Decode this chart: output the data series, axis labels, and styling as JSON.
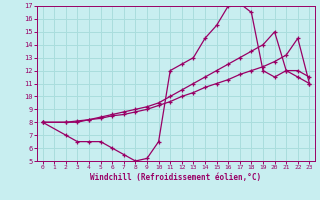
{
  "xlabel": "Windchill (Refroidissement éolien,°C)",
  "background_color": "#c8eef0",
  "grid_color": "#aadddd",
  "line_color": "#990066",
  "xlim": [
    -0.5,
    23.5
  ],
  "ylim": [
    5,
    17
  ],
  "xticks": [
    0,
    1,
    2,
    3,
    4,
    5,
    6,
    7,
    8,
    9,
    10,
    11,
    12,
    13,
    14,
    15,
    16,
    17,
    18,
    19,
    20,
    21,
    22,
    23
  ],
  "yticks": [
    5,
    6,
    7,
    8,
    9,
    10,
    11,
    12,
    13,
    14,
    15,
    16,
    17
  ],
  "line1_x": [
    0,
    2,
    3,
    4,
    5,
    6,
    7,
    8,
    9,
    10,
    11,
    12,
    13,
    14,
    15,
    16,
    17,
    18,
    19,
    20,
    21,
    22,
    23
  ],
  "line1_y": [
    8.0,
    7.0,
    6.5,
    6.5,
    6.5,
    6.0,
    5.5,
    5.0,
    5.2,
    6.5,
    12.0,
    12.5,
    13.0,
    14.5,
    15.5,
    17.0,
    17.2,
    16.5,
    12.0,
    11.5,
    12.0,
    11.5,
    11.0
  ],
  "line2_x": [
    0,
    2,
    3,
    4,
    5,
    6,
    7,
    8,
    9,
    10,
    11,
    12,
    13,
    14,
    15,
    16,
    17,
    18,
    19,
    20,
    21,
    22,
    23
  ],
  "line2_y": [
    8.0,
    8.0,
    8.0,
    8.2,
    8.3,
    8.5,
    8.6,
    8.8,
    9.0,
    9.3,
    9.6,
    10.0,
    10.3,
    10.7,
    11.0,
    11.3,
    11.7,
    12.0,
    12.3,
    12.7,
    13.2,
    14.5,
    11.0
  ],
  "line3_x": [
    0,
    2,
    3,
    4,
    5,
    6,
    7,
    8,
    9,
    10,
    11,
    12,
    13,
    14,
    15,
    16,
    17,
    18,
    19,
    20,
    21,
    22,
    23
  ],
  "line3_y": [
    8.0,
    8.0,
    8.1,
    8.2,
    8.4,
    8.6,
    8.8,
    9.0,
    9.2,
    9.5,
    10.0,
    10.5,
    11.0,
    11.5,
    12.0,
    12.5,
    13.0,
    13.5,
    14.0,
    15.0,
    12.0,
    12.0,
    11.5
  ]
}
